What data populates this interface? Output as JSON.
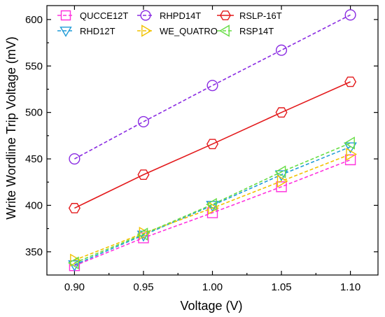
{
  "chart_data": {
    "type": "line",
    "xlabel": "Voltage (V)",
    "ylabel": "Write Wordline Trip Voltage (mV)",
    "xlim": [
      0.88,
      1.12
    ],
    "ylim": [
      325,
      615
    ],
    "xticks": [
      "0.90",
      "0.95",
      "1.00",
      "1.05",
      "1.10"
    ],
    "yticks": [
      "350",
      "400",
      "450",
      "500",
      "550",
      "600"
    ],
    "grid": false,
    "legend_position": "top",
    "x": [
      0.9,
      0.95,
      1.0,
      1.05,
      1.1
    ],
    "series": [
      {
        "name": "QUCCE12T",
        "color": "#ff33dd",
        "marker": "square",
        "dash": "dashed",
        "values": [
          335,
          365,
          392,
          420,
          449
        ]
      },
      {
        "name": "RHPD14T",
        "color": "#8a2be2",
        "marker": "circle",
        "dash": "dashed",
        "values": [
          450,
          490,
          529,
          567,
          605
        ]
      },
      {
        "name": "RSLP-16T",
        "color": "#e31a1c",
        "marker": "hexagon",
        "dash": "solid",
        "values": [
          397,
          433,
          466,
          500,
          533
        ]
      },
      {
        "name": "RHD12T",
        "color": "#1f9bd7",
        "marker": "triangle-down",
        "dash": "dashed",
        "values": [
          336,
          368,
          400,
          433,
          463
        ]
      },
      {
        "name": "WE_QUATRO",
        "color": "#f2c200",
        "marker": "triangle-right",
        "dash": "dashed",
        "values": [
          341,
          370,
          397,
          426,
          455
        ]
      },
      {
        "name": "RSP14T",
        "color": "#66dd44",
        "marker": "triangle-left",
        "dash": "dashed",
        "values": [
          338,
          369,
          401,
          436,
          467
        ]
      }
    ]
  }
}
